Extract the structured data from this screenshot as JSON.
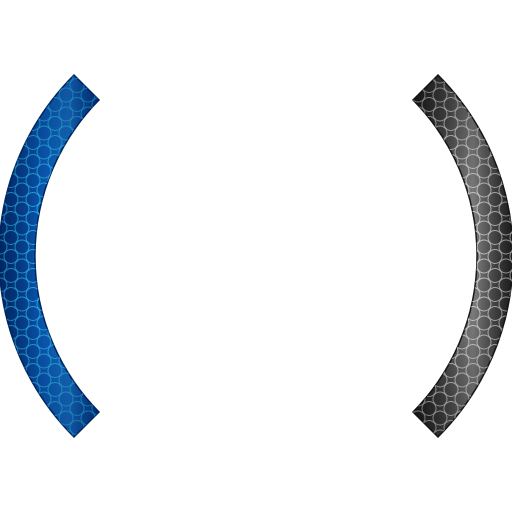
{
  "graphic": {
    "left_bracket": {
      "name": "blue-parenthesis",
      "fill_colors": [
        "#003a8c",
        "#0a63c9",
        "#1a86e6"
      ],
      "pattern_stroke": "#31c8ff",
      "edge_color": "#002866"
    },
    "right_bracket": {
      "name": "gray-parenthesis",
      "fill_colors": [
        "#2a2a2a",
        "#5c5c5c",
        "#9a9a9a"
      ],
      "pattern_stroke": "#e8e8e8",
      "edge_color": "#1a1a1a"
    },
    "background_color": "#ffffff"
  }
}
